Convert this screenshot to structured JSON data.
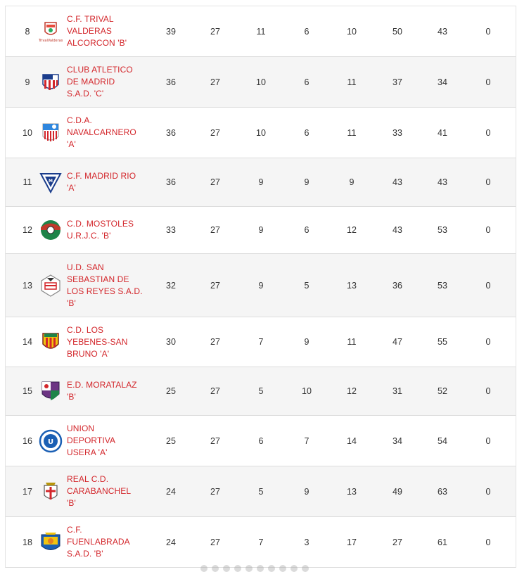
{
  "standings": {
    "rows": [
      {
        "pos": "8",
        "team": "C.F. TRIVAL\nVALDERAS\nALCORCON 'B'",
        "logo": "trival-valderas-crest-icon",
        "logo_text": "TrivalValderas",
        "stats": [
          "39",
          "27",
          "11",
          "6",
          "10",
          "50",
          "43",
          "0"
        ],
        "height": 72
      },
      {
        "pos": "9",
        "team": "CLUB ATLETICO\nDE MADRID\nS.A.D. 'C'",
        "logo": "atletico-madrid-crest-icon",
        "stats": [
          "36",
          "27",
          "10",
          "6",
          "11",
          "37",
          "34",
          "0"
        ],
        "height": 72
      },
      {
        "pos": "10",
        "team": "C.D.A.\nNAVALCARNERO\n'A'",
        "logo": "navalcarnero-crest-icon",
        "stats": [
          "36",
          "27",
          "10",
          "6",
          "11",
          "33",
          "41",
          "0"
        ],
        "height": 72
      },
      {
        "pos": "11",
        "team": "C.F. MADRID RIO\n'A'",
        "logo": "madrid-rio-crest-icon",
        "stats": [
          "36",
          "27",
          "9",
          "9",
          "9",
          "43",
          "43",
          "0"
        ],
        "height": 69
      },
      {
        "pos": "12",
        "team": "C.D. MOSTOLES\nU.R.J.C. 'B'",
        "logo": "mostoles-crest-icon",
        "stats": [
          "33",
          "27",
          "9",
          "6",
          "12",
          "43",
          "53",
          "0"
        ],
        "height": 67
      },
      {
        "pos": "13",
        "team": "U.D. SAN\nSEBASTIAN DE\nLOS REYES S.A.D.\n'B'",
        "logo": "san-sebastian-reyes-crest-icon",
        "stats": [
          "32",
          "27",
          "9",
          "5",
          "13",
          "36",
          "53",
          "0"
        ],
        "height": 90
      },
      {
        "pos": "14",
        "team": "C.D. LOS\nYEBENES-SAN\nBRUNO 'A'",
        "logo": "yebenes-san-bruno-crest-icon",
        "stats": [
          "30",
          "27",
          "7",
          "9",
          "11",
          "47",
          "55",
          "0"
        ],
        "height": 71
      },
      {
        "pos": "15",
        "team": "E.D. MORATALAZ\n'B'",
        "logo": "moratalaz-crest-icon",
        "stats": [
          "25",
          "27",
          "5",
          "10",
          "12",
          "31",
          "52",
          "0"
        ],
        "height": 69
      },
      {
        "pos": "16",
        "team": "UNION\nDEPORTIVA\nUSERA 'A'",
        "logo": "union-deportiva-usera-crest-icon",
        "stats": [
          "25",
          "27",
          "6",
          "7",
          "14",
          "34",
          "54",
          "0"
        ],
        "height": 72
      },
      {
        "pos": "17",
        "team": "REAL C.D.\nCARABANCHEL\n'B'",
        "logo": "carabanchel-crest-icon",
        "stats": [
          "24",
          "27",
          "5",
          "9",
          "13",
          "49",
          "63",
          "0"
        ],
        "height": 72
      },
      {
        "pos": "18",
        "team": "C.F.\nFUENLABRADA\nS.A.D. 'B'",
        "logo": "fuenlabrada-crest-icon",
        "stats": [
          "24",
          "27",
          "7",
          "3",
          "17",
          "27",
          "61",
          "0"
        ],
        "height": 72
      }
    ]
  },
  "colors": {
    "team_link": "#d3262b",
    "row_alt": "#f5f5f5",
    "divider": "#dcdcdc",
    "text": "#333333"
  }
}
